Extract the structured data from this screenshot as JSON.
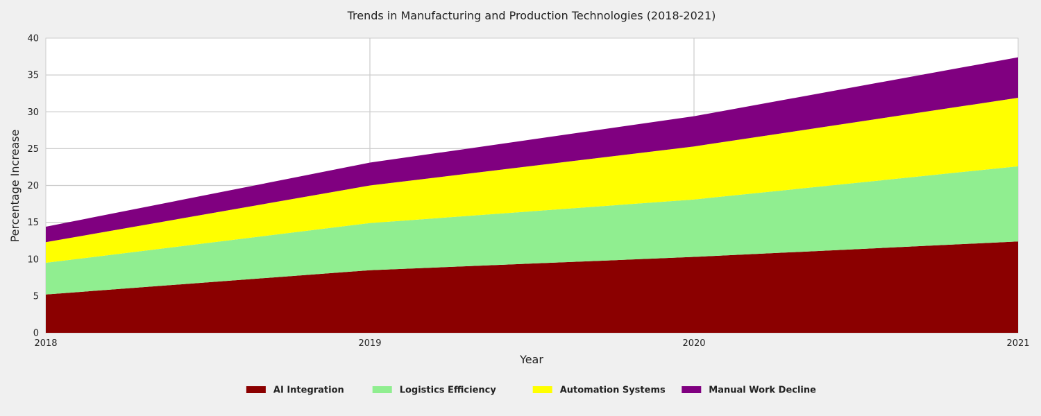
{
  "chart_data": {
    "type": "area",
    "stacked": true,
    "title": "Trends in Manufacturing and Production Technologies (2018-2021)",
    "xlabel": "Year",
    "ylabel": "Percentage Increase",
    "x": [
      2018,
      2019,
      2020,
      2021
    ],
    "x_tick_labels": [
      "2018",
      "2019",
      "2020",
      "2021"
    ],
    "ylim": [
      0,
      40
    ],
    "y_ticks": [
      0,
      5,
      10,
      15,
      20,
      25,
      30,
      35,
      40
    ],
    "grid": true,
    "legend_placement": "bottom-center",
    "series": [
      {
        "name": "AI Integration",
        "color": "#8b0000",
        "values": [
          5.2,
          8.5,
          10.3,
          12.4
        ]
      },
      {
        "name": "Logistics Efficiency",
        "color": "#90ee90",
        "values": [
          4.3,
          6.4,
          7.8,
          10.2
        ]
      },
      {
        "name": "Automation Systems",
        "color": "#ffff00",
        "values": [
          2.8,
          5.1,
          7.2,
          9.3
        ]
      },
      {
        "name": "Manual Work Decline",
        "color": "#800080",
        "values": [
          2.1,
          3.1,
          4.1,
          5.5
        ]
      }
    ]
  }
}
